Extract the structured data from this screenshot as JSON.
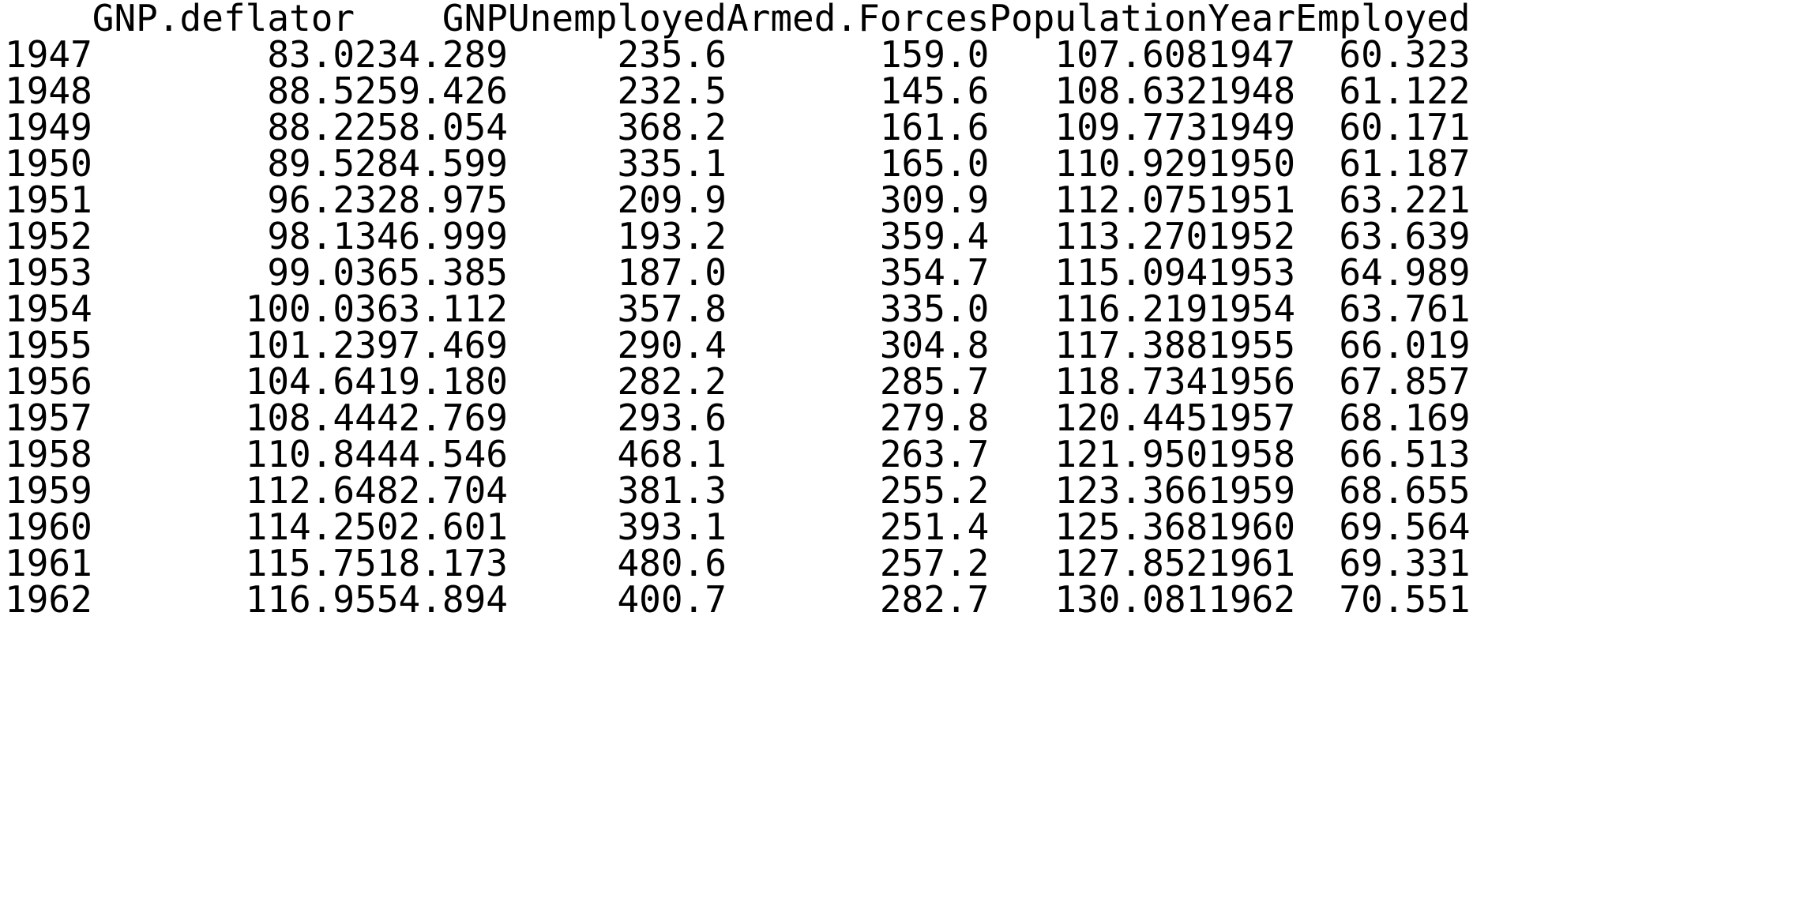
{
  "table": {
    "columns": [
      "",
      "GNP.deflator",
      "GNP",
      "Unemployed",
      "Armed.Forces",
      "Population",
      "Year",
      "Employed"
    ],
    "rows": [
      {
        "rowname": "1947",
        "cells": [
          "83.0",
          "234.289",
          "235.6",
          "159.0",
          "107.608",
          "1947",
          "60.323"
        ]
      },
      {
        "rowname": "1948",
        "cells": [
          "88.5",
          "259.426",
          "232.5",
          "145.6",
          "108.632",
          "1948",
          "61.122"
        ]
      },
      {
        "rowname": "1949",
        "cells": [
          "88.2",
          "258.054",
          "368.2",
          "161.6",
          "109.773",
          "1949",
          "60.171"
        ]
      },
      {
        "rowname": "1950",
        "cells": [
          "89.5",
          "284.599",
          "335.1",
          "165.0",
          "110.929",
          "1950",
          "61.187"
        ]
      },
      {
        "rowname": "1951",
        "cells": [
          "96.2",
          "328.975",
          "209.9",
          "309.9",
          "112.075",
          "1951",
          "63.221"
        ]
      },
      {
        "rowname": "1952",
        "cells": [
          "98.1",
          "346.999",
          "193.2",
          "359.4",
          "113.270",
          "1952",
          "63.639"
        ]
      },
      {
        "rowname": "1953",
        "cells": [
          "99.0",
          "365.385",
          "187.0",
          "354.7",
          "115.094",
          "1953",
          "64.989"
        ]
      },
      {
        "rowname": "1954",
        "cells": [
          "100.0",
          "363.112",
          "357.8",
          "335.0",
          "116.219",
          "1954",
          "63.761"
        ]
      },
      {
        "rowname": "1955",
        "cells": [
          "101.2",
          "397.469",
          "290.4",
          "304.8",
          "117.388",
          "1955",
          "66.019"
        ]
      },
      {
        "rowname": "1956",
        "cells": [
          "104.6",
          "419.180",
          "282.2",
          "285.7",
          "118.734",
          "1956",
          "67.857"
        ]
      },
      {
        "rowname": "1957",
        "cells": [
          "108.4",
          "442.769",
          "293.6",
          "279.8",
          "120.445",
          "1957",
          "68.169"
        ]
      },
      {
        "rowname": "1958",
        "cells": [
          "110.8",
          "444.546",
          "468.1",
          "263.7",
          "121.950",
          "1958",
          "66.513"
        ]
      },
      {
        "rowname": "1959",
        "cells": [
          "112.6",
          "482.704",
          "381.3",
          "255.2",
          "123.366",
          "1959",
          "68.655"
        ]
      },
      {
        "rowname": "1960",
        "cells": [
          "114.2",
          "502.601",
          "393.1",
          "251.4",
          "125.368",
          "1960",
          "69.564"
        ]
      },
      {
        "rowname": "1961",
        "cells": [
          "115.7",
          "518.173",
          "480.6",
          "257.2",
          "127.852",
          "1961",
          "69.331"
        ]
      },
      {
        "rowname": "1962",
        "cells": [
          "116.9",
          "554.894",
          "400.7",
          "282.7",
          "130.081",
          "1962",
          "70.551"
        ]
      }
    ]
  }
}
